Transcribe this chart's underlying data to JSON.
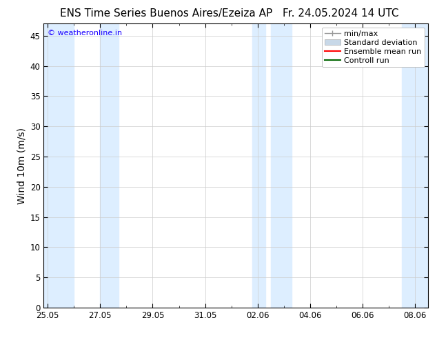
{
  "title_left": "ENS Time Series Buenos Aires/Ezeiza AP",
  "title_right": "Fr. 24.05.2024 14 UTC",
  "ylabel": "Wind 10m (m/s)",
  "ylim": [
    0,
    47
  ],
  "yticks": [
    0,
    5,
    10,
    15,
    20,
    25,
    30,
    35,
    40,
    45
  ],
  "background_color": "#ffffff",
  "plot_bg_color": "#ffffff",
  "watermark_text": "© weatheronline.in",
  "watermark_color": "#1a00ff",
  "shaded_band_color": "#ddeeff",
  "shaded_band_alpha": 1.0,
  "legend_entries": [
    "min/max",
    "Standard deviation",
    "Ensemble mean run",
    "Controll run"
  ],
  "legend_colors": [
    "#999999",
    "#c8d8e8",
    "#ff0000",
    "#006600"
  ],
  "x_tick_labels": [
    "25.05",
    "27.05",
    "29.05",
    "31.05",
    "02.06",
    "04.06",
    "06.06",
    "08.06"
  ],
  "x_tick_positions": [
    0,
    2,
    4,
    6,
    8,
    10,
    12,
    14
  ],
  "xlim": [
    -0.15,
    14.5
  ],
  "grid_color": "#cccccc",
  "tick_color": "#000000",
  "title_fontsize": 11,
  "axis_label_fontsize": 10,
  "tick_fontsize": 8.5,
  "legend_fontsize": 8
}
